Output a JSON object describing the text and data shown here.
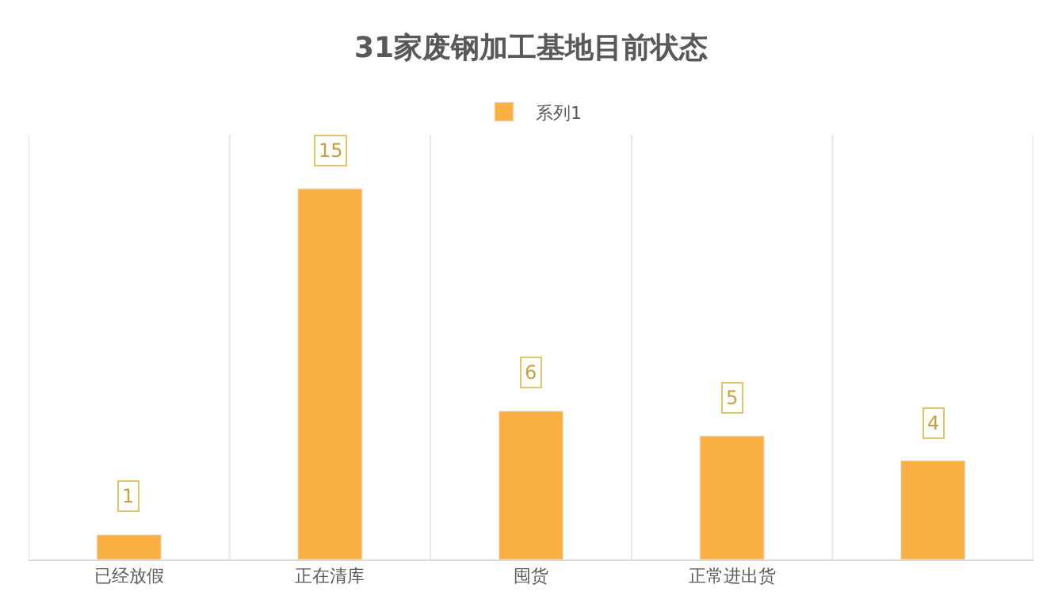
{
  "chart_data": {
    "type": "bar",
    "title": "31家废钢加工基地目前状态",
    "categories": [
      "已经放假",
      "正在清库",
      "囤货",
      "正常进出货",
      null
    ],
    "series": [
      {
        "name": "系列1",
        "color": "#fbb044",
        "values": [
          1,
          15,
          6,
          5,
          4
        ]
      }
    ],
    "data_labels": true,
    "legend": "top",
    "grid": "x"
  }
}
